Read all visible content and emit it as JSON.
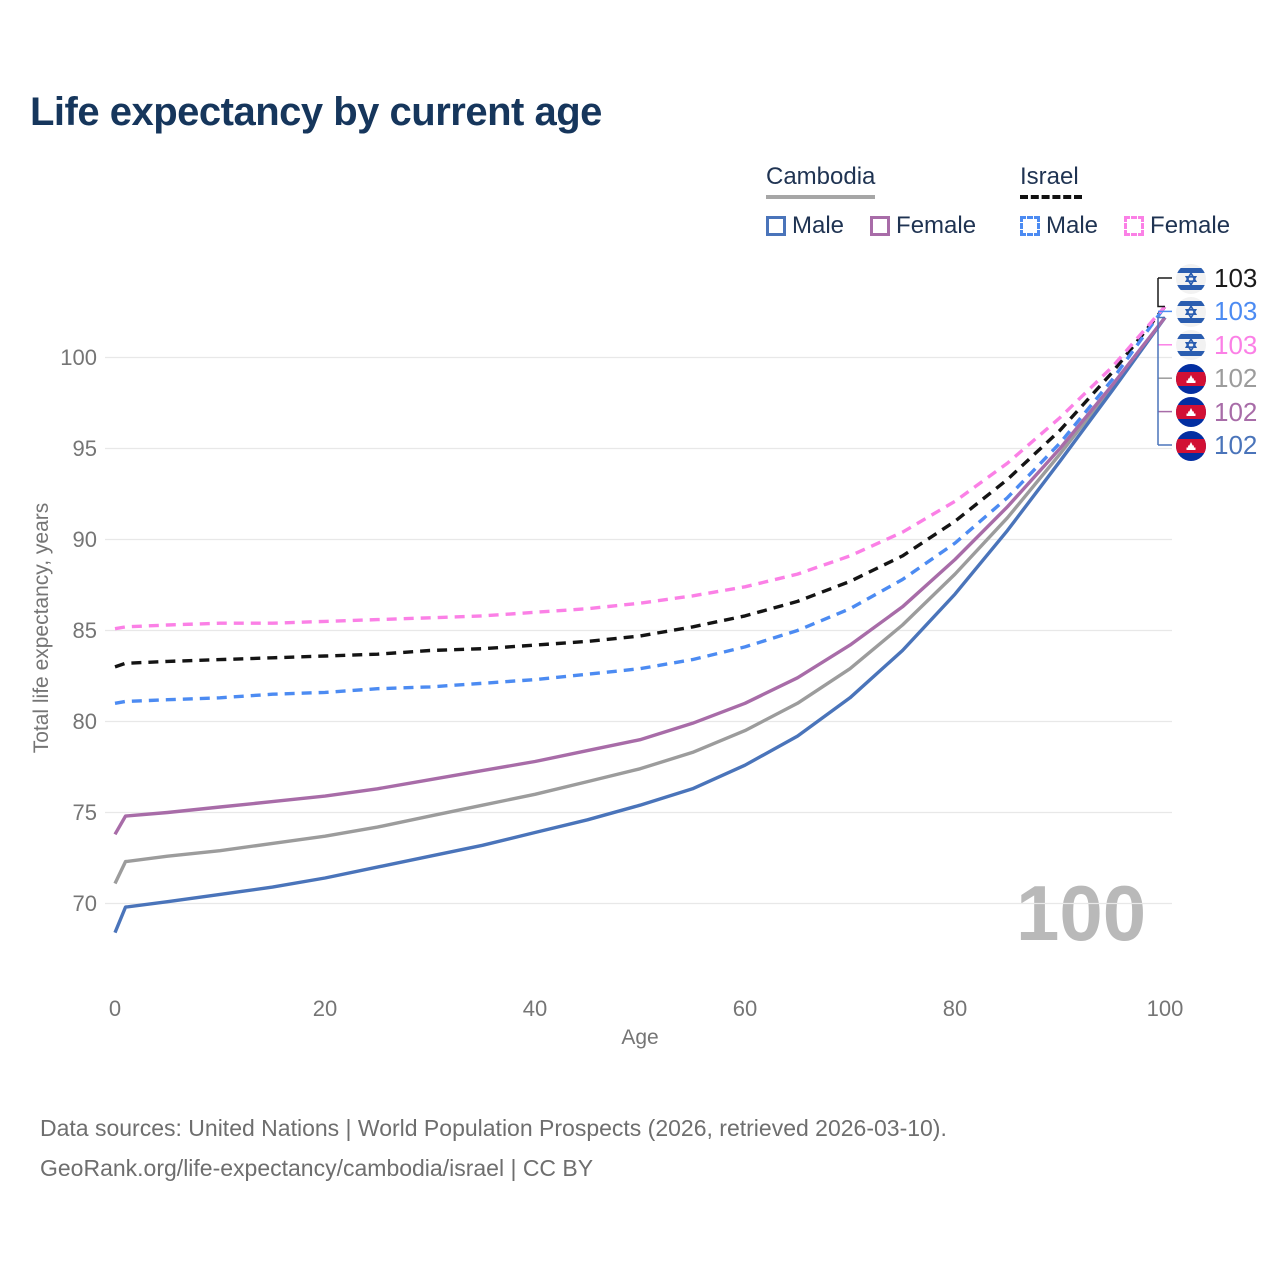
{
  "page": {
    "title": "Life expectancy by current age",
    "watermark": "100"
  },
  "legend": {
    "groups": [
      {
        "label": "Cambodia",
        "style": "solid",
        "items": [
          {
            "label": "Male",
            "color": "#4a74ba"
          },
          {
            "label": "Female",
            "color": "#a86ca8"
          }
        ]
      },
      {
        "label": "Israel",
        "style": "dashed",
        "items": [
          {
            "label": "Male",
            "color": "#4c8bf2"
          },
          {
            "label": "Female",
            "color": "#fb80e6"
          }
        ]
      }
    ]
  },
  "chart_data": {
    "type": "line",
    "title": "Life expectancy by current age",
    "xlabel": "Age",
    "ylabel": "Total life expectancy, years",
    "xlim": [
      0,
      100
    ],
    "ylim": [
      67,
      104
    ],
    "xticks": [
      0,
      20,
      40,
      60,
      80,
      100
    ],
    "yticks": [
      70,
      75,
      80,
      85,
      90,
      95,
      100
    ],
    "grid": "horizontal",
    "legend_position": "top-right",
    "ages": [
      0,
      1,
      5,
      10,
      15,
      20,
      25,
      30,
      35,
      40,
      45,
      50,
      55,
      60,
      65,
      70,
      75,
      80,
      85,
      90,
      95,
      100
    ],
    "series": [
      {
        "name": "Cambodia All",
        "country": "Cambodia",
        "sex": "All",
        "style": "solid",
        "color": "#9c9c9c",
        "end_label": "102",
        "values": [
          71.1,
          72.3,
          72.6,
          72.9,
          73.3,
          73.7,
          74.2,
          74.8,
          75.4,
          76.0,
          76.7,
          77.4,
          78.3,
          79.5,
          81.0,
          82.9,
          85.3,
          88.1,
          91.2,
          94.7,
          98.4,
          102.2
        ]
      },
      {
        "name": "Cambodia Male",
        "country": "Cambodia",
        "sex": "Male",
        "style": "solid",
        "color": "#4a74ba",
        "end_label": "102",
        "values": [
          68.4,
          69.8,
          70.1,
          70.5,
          70.9,
          71.4,
          72.0,
          72.6,
          73.2,
          73.9,
          74.6,
          75.4,
          76.3,
          77.6,
          79.2,
          81.3,
          83.9,
          87.0,
          90.5,
          94.3,
          98.2,
          102.2
        ]
      },
      {
        "name": "Cambodia Female",
        "country": "Cambodia",
        "sex": "Female",
        "style": "solid",
        "color": "#a86ca8",
        "end_label": "102",
        "values": [
          73.8,
          74.8,
          75.0,
          75.3,
          75.6,
          75.9,
          76.3,
          76.8,
          77.3,
          77.8,
          78.4,
          79.0,
          79.9,
          81.0,
          82.4,
          84.2,
          86.3,
          88.9,
          91.8,
          95.0,
          98.5,
          102.2
        ]
      },
      {
        "name": "Israel All",
        "country": "Israel",
        "sex": "All",
        "style": "dashed",
        "color": "#141414",
        "end_label": "103",
        "values": [
          83.0,
          83.2,
          83.3,
          83.4,
          83.5,
          83.6,
          83.7,
          83.9,
          84.0,
          84.2,
          84.4,
          84.7,
          85.2,
          85.8,
          86.6,
          87.7,
          89.1,
          91.0,
          93.3,
          96.0,
          99.2,
          102.8
        ]
      },
      {
        "name": "Israel Male",
        "country": "Israel",
        "sex": "Male",
        "style": "dashed",
        "color": "#4c8bf2",
        "end_label": "103",
        "values": [
          81.0,
          81.1,
          81.2,
          81.3,
          81.5,
          81.6,
          81.8,
          81.9,
          82.1,
          82.3,
          82.6,
          82.9,
          83.4,
          84.1,
          85.0,
          86.2,
          87.8,
          89.8,
          92.3,
          95.3,
          98.8,
          102.8
        ]
      },
      {
        "name": "Israel Female",
        "country": "Israel",
        "sex": "Female",
        "style": "dashed",
        "color": "#fb80e6",
        "end_label": "103",
        "values": [
          85.1,
          85.2,
          85.3,
          85.4,
          85.4,
          85.5,
          85.6,
          85.7,
          85.8,
          86.0,
          86.2,
          86.5,
          86.9,
          87.4,
          88.1,
          89.1,
          90.4,
          92.1,
          94.2,
          96.7,
          99.5,
          102.8
        ]
      }
    ]
  },
  "end_labels": [
    {
      "flag": "israel",
      "value": "103",
      "color": "#1a1a1a",
      "series": "Israel All"
    },
    {
      "flag": "israel",
      "value": "103",
      "color": "#4c8bf2",
      "series": "Israel Male"
    },
    {
      "flag": "israel",
      "value": "103",
      "color": "#fb80e6",
      "series": "Israel Female"
    },
    {
      "flag": "cambodia",
      "value": "102",
      "color": "#9c9c9c",
      "series": "Cambodia All"
    },
    {
      "flag": "cambodia",
      "value": "102",
      "color": "#a86ca8",
      "series": "Cambodia Female"
    },
    {
      "flag": "cambodia",
      "value": "102",
      "color": "#4a74ba",
      "series": "Cambodia Male"
    }
  ],
  "footer": {
    "line1": "Data sources: United Nations | World Population Prospects (2026, retrieved 2026-03-10).",
    "line2": "GeoRank.org/life-expectancy/cambodia/israel | CC BY"
  }
}
